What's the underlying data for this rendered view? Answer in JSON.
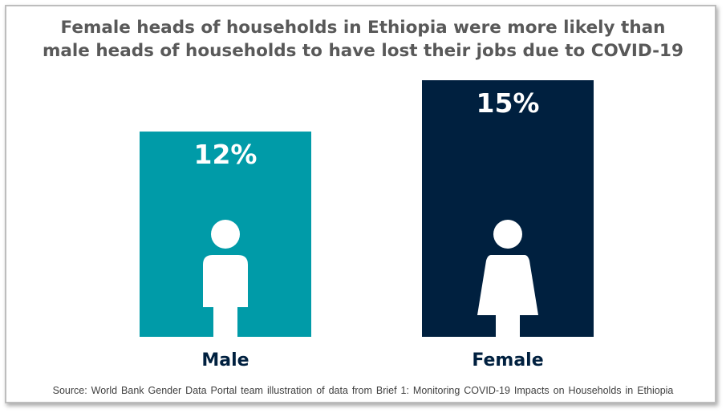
{
  "title_lines": [
    "Female heads of households in Ethiopia were more likely than",
    "male heads of households to have lost their jobs due to COVID-19"
  ],
  "source": "Source: World Bank Gender Data Portal team illustration  of data from Brief 1: Monitoring COVID-19 Impacts on Households in Ethiopia",
  "colors": {
    "male": "#009ba8",
    "female": "#00203f",
    "title": "#595959",
    "category_label": "#00203f"
  },
  "chart_data": {
    "type": "bar",
    "title": "Female heads of households in Ethiopia were more likely than male heads of households to have lost their jobs due to COVID-19",
    "xlabel": "",
    "ylabel": "",
    "categories": [
      "Male",
      "Female"
    ],
    "values": [
      12,
      15
    ],
    "value_labels": [
      "12%",
      "15%"
    ],
    "icons": [
      "male-person-icon",
      "female-person-icon"
    ],
    "unit": "%"
  }
}
